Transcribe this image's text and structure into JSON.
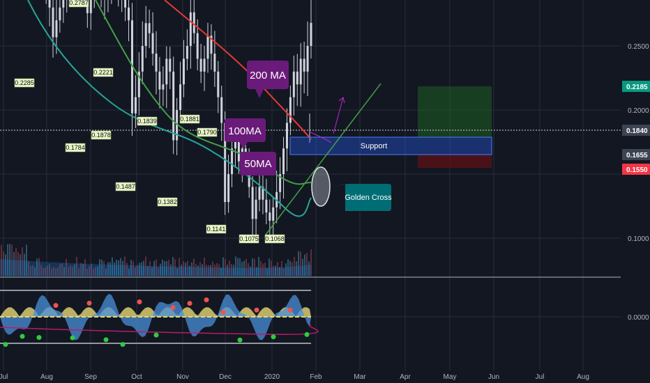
{
  "chart_data": {
    "type": "candlestick",
    "x_ticks": [
      "Jul",
      "Aug",
      "Sep",
      "Oct",
      "Nov",
      "Dec",
      "2020",
      "Feb",
      "Mar",
      "Apr",
      "May",
      "Jun",
      "Jul",
      "Aug"
    ],
    "y_ticks": [
      "0.2500",
      "0.2000",
      "0.1000"
    ],
    "osc_zero_label": "0.0000",
    "price_tags": [
      {
        "label": "0.2185",
        "color": "#089981"
      },
      {
        "label": "0.1840",
        "color": "#3c4353"
      },
      {
        "label": "0.1655",
        "color": "#3c4353"
      },
      {
        "label": "0.1550",
        "color": "#f23645"
      }
    ],
    "pivot_labels": [
      "0.2787",
      "0.2285",
      "0.2221",
      "0.1784",
      "0.1878",
      "0.1839",
      "0.1881",
      "0.1790",
      "0.1487",
      "0.1382",
      "0.1141",
      "0.1075",
      "0.1068"
    ],
    "callouts": {
      "ma200": "200 MA",
      "ma100": "100MA",
      "ma50": "50MA",
      "support": "Support",
      "golden_cross": "Golden Cross"
    },
    "colors": {
      "background": "#131722",
      "ma200": "#e53935",
      "ma100": "#26a69a",
      "ma50": "#43a047",
      "candles": "#d1d4dc",
      "support_box": "#2962ff",
      "callout_purple": "#6a1b7a",
      "callout_teal": "#006d75",
      "target_zone": "#1b5e20",
      "stop_zone": "#5d1216"
    },
    "price_series": [
      0.262,
      0.255,
      0.248,
      0.258,
      0.262,
      0.2285,
      0.245,
      0.252,
      0.24,
      0.235,
      0.225,
      0.218,
      0.21,
      0.2,
      0.19,
      0.1784,
      0.185,
      0.19,
      0.195,
      0.2787,
      0.26,
      0.24,
      0.225,
      0.215,
      0.205,
      0.1878,
      0.195,
      0.2221,
      0.21,
      0.2,
      0.195,
      0.2,
      0.205,
      0.21,
      0.2,
      0.195,
      0.19,
      0.185,
      0.1487,
      0.155,
      0.165,
      0.175,
      0.1839,
      0.18,
      0.172,
      0.165,
      0.158,
      0.16,
      0.17,
      0.165,
      0.1382,
      0.15,
      0.16,
      0.17,
      0.175,
      0.1881,
      0.18,
      0.17,
      0.165,
      0.17,
      0.179,
      0.172,
      0.165,
      0.155,
      0.145,
      0.1141,
      0.125,
      0.135,
      0.14,
      0.13,
      0.135,
      0.13,
      0.12,
      0.1075,
      0.115,
      0.12,
      0.115,
      0.11,
      0.1068,
      0.112,
      0.118,
      0.125,
      0.135,
      0.145,
      0.155,
      0.165,
      0.16,
      0.17,
      0.165,
      0.175,
      0.184
    ]
  }
}
